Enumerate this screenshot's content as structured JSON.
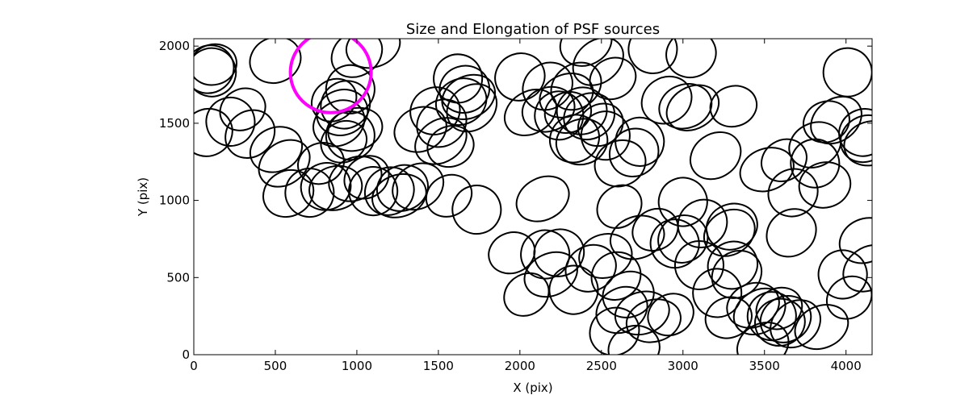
{
  "chart_data": {
    "type": "scatter",
    "title": "Size and Elongation of PSF sources",
    "xlabel": "X (pix)",
    "ylabel": "Y (pix)",
    "xlim": [
      0,
      4160
    ],
    "ylim": [
      0,
      2048
    ],
    "xticks": [
      0,
      500,
      1000,
      1500,
      2000,
      2500,
      3000,
      3500,
      4000
    ],
    "yticks": [
      0,
      500,
      1000,
      1500,
      2000
    ],
    "grid": false,
    "series": [
      {
        "marker": "ellipse",
        "color": "#000000",
        "points": [
          [
            120,
            1880
          ],
          [
            110,
            1830
          ],
          [
            95,
            1850
          ],
          [
            500,
            1910
          ],
          [
            1000,
            1950
          ],
          [
            1100,
            2000
          ],
          [
            300,
            1590
          ],
          [
            225,
            1510
          ],
          [
            85,
            1440
          ],
          [
            345,
            1430
          ],
          [
            505,
            1330
          ],
          [
            555,
            1240
          ],
          [
            780,
            1240
          ],
          [
            710,
            1050
          ],
          [
            810,
            1090
          ],
          [
            580,
            1045
          ],
          [
            870,
            1080
          ],
          [
            990,
            1140
          ],
          [
            1060,
            1150
          ],
          [
            1100,
            1060
          ],
          [
            1200,
            1060
          ],
          [
            1280,
            1080
          ],
          [
            1375,
            1090
          ],
          [
            1260,
            1030
          ],
          [
            1565,
            1030
          ],
          [
            1735,
            940
          ],
          [
            1480,
            1580
          ],
          [
            1520,
            1500
          ],
          [
            1390,
            1460
          ],
          [
            1515,
            1385
          ],
          [
            1575,
            1350
          ],
          [
            1620,
            1790
          ],
          [
            1660,
            1720
          ],
          [
            1640,
            1640
          ],
          [
            1705,
            1600
          ],
          [
            1685,
            1670
          ],
          [
            860,
            1650
          ],
          [
            960,
            1720
          ],
          [
            930,
            1620
          ],
          [
            910,
            1570
          ],
          [
            890,
            1500
          ],
          [
            990,
            1460
          ],
          [
            920,
            1380
          ],
          [
            960,
            1420
          ],
          [
            2000,
            1800
          ],
          [
            2170,
            1740
          ],
          [
            2175,
            1590
          ],
          [
            2065,
            1570
          ],
          [
            2295,
            1570
          ],
          [
            2240,
            1550
          ],
          [
            2380,
            1580
          ],
          [
            2425,
            1545
          ],
          [
            2345,
            1740
          ],
          [
            2285,
            1680
          ],
          [
            2495,
            1490
          ],
          [
            2525,
            1420
          ],
          [
            2335,
            1400
          ],
          [
            2380,
            1380
          ],
          [
            2405,
            2020
          ],
          [
            2480,
            1900
          ],
          [
            2570,
            1790
          ],
          [
            2815,
            1980
          ],
          [
            3050,
            1950
          ],
          [
            2900,
            1650
          ],
          [
            3015,
            1610
          ],
          [
            3060,
            1600
          ],
          [
            3310,
            1610
          ],
          [
            2735,
            1380
          ],
          [
            2700,
            1310
          ],
          [
            2615,
            1240
          ],
          [
            3200,
            1290
          ],
          [
            3515,
            1200
          ],
          [
            3620,
            1260
          ],
          [
            3810,
            1240
          ],
          [
            3675,
            1050
          ],
          [
            3870,
            1100
          ],
          [
            3810,
            1360
          ],
          [
            3940,
            1520
          ],
          [
            3880,
            1510
          ],
          [
            4010,
            1830
          ],
          [
            4110,
            1440
          ],
          [
            4120,
            1400
          ],
          [
            4150,
            1370
          ],
          [
            2140,
            1010
          ],
          [
            2610,
            960
          ],
          [
            3000,
            990
          ],
          [
            3120,
            850
          ],
          [
            3300,
            830
          ],
          [
            3285,
            790
          ],
          [
            2720,
            760
          ],
          [
            2830,
            810
          ],
          [
            2950,
            720
          ],
          [
            3000,
            750
          ],
          [
            3665,
            790
          ],
          [
            4120,
            740
          ],
          [
            4140,
            560
          ],
          [
            1950,
            660
          ],
          [
            2155,
            650
          ],
          [
            2240,
            660
          ],
          [
            2435,
            560
          ],
          [
            2525,
            640
          ],
          [
            2190,
            520
          ],
          [
            2040,
            390
          ],
          [
            2330,
            420
          ],
          [
            2590,
            510
          ],
          [
            2665,
            390
          ],
          [
            2625,
            290
          ],
          [
            2750,
            270
          ],
          [
            2925,
            260
          ],
          [
            3210,
            400
          ],
          [
            3305,
            580
          ],
          [
            3330,
            520
          ],
          [
            3430,
            320
          ],
          [
            3470,
            280
          ],
          [
            3280,
            240
          ],
          [
            3545,
            250
          ],
          [
            3595,
            210
          ],
          [
            3630,
            230
          ],
          [
            3690,
            200
          ],
          [
            3850,
            180
          ],
          [
            4020,
            370
          ],
          [
            3980,
            520
          ],
          [
            2580,
            150
          ],
          [
            2700,
            40
          ],
          [
            3490,
            60
          ],
          [
            2820,
            220
          ],
          [
            3590,
            300
          ],
          [
            3100,
            580
          ]
        ]
      }
    ],
    "highlight": {
      "x": 840,
      "y": 1830,
      "color": "#ff00ff"
    }
  }
}
